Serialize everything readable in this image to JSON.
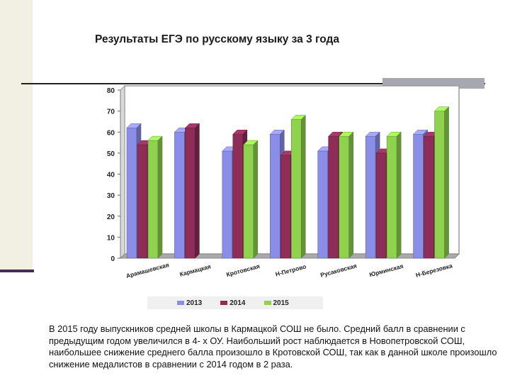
{
  "title": "Результаты ЕГЭ по русскому языку за 3 года",
  "chart_data": {
    "type": "bar",
    "title": "Результаты ЕГЭ по русскому языку за 3 года",
    "categories": [
      "Арамашевская",
      "Кармацкая",
      "Кротовская",
      "Н-Петрово",
      "Русаковская",
      "Юрминская",
      "Н-Березовка"
    ],
    "series": [
      {
        "name": "2013",
        "color": "#8b8ee8",
        "values": [
          62,
          60,
          51,
          59,
          51,
          58,
          59
        ]
      },
      {
        "name": "2014",
        "color": "#8e2e58",
        "values": [
          54,
          62,
          59,
          49,
          58,
          50,
          58
        ]
      },
      {
        "name": "2015",
        "color": "#8fd24e",
        "values": [
          56,
          null,
          54,
          66,
          58,
          58,
          70
        ]
      }
    ],
    "yticks": [
      0,
      10,
      20,
      30,
      40,
      50,
      60,
      70,
      80
    ],
    "ylim": [
      0,
      80
    ],
    "grid": false,
    "legend": "bottom"
  },
  "caption": "В 2015 году выпускников средней школы в Кармацкой СОШ не было. Средний балл в сравнении с предыдущим годом увеличился в 4- х ОУ. Наибольший рост наблюдается в Новопетровской СОШ, наибольшее снижение среднего балла произошло в Кротовской СОШ, так как в данной школе произошло снижение медалистов в сравнении с 2014 годом в 2 раза."
}
